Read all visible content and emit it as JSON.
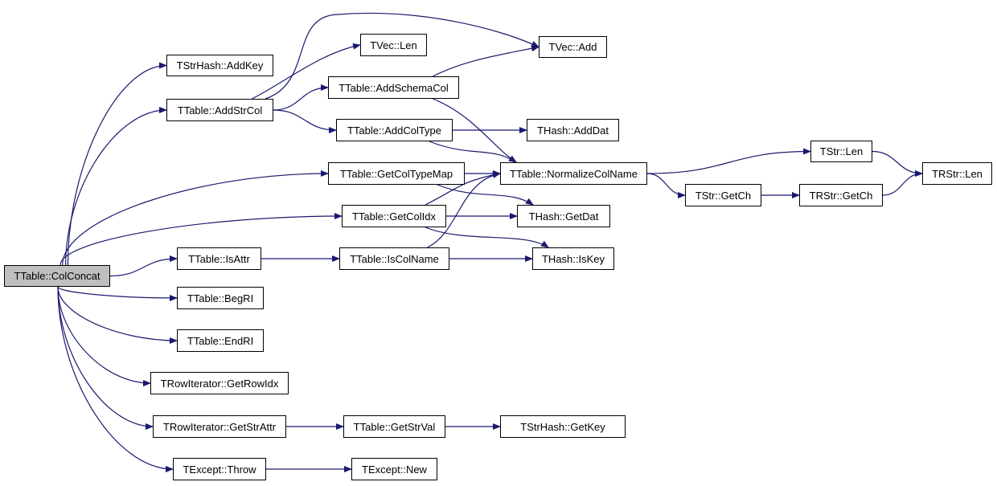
{
  "colors": {
    "edge": "#191970",
    "root_fill": "#bfbfbf",
    "node_fill": "#ffffff",
    "border": "#000000"
  },
  "nodes": [
    {
      "id": "colconcat",
      "label": "TTable::ColConcat",
      "root": true
    },
    {
      "id": "addkey",
      "label": "TStrHash::AddKey"
    },
    {
      "id": "addstrcol",
      "label": "TTable::AddStrCol"
    },
    {
      "id": "veclen",
      "label": "TVec::Len"
    },
    {
      "id": "vecadd",
      "label": "TVec::Add"
    },
    {
      "id": "addschemacol",
      "label": "TTable::AddSchemaCol"
    },
    {
      "id": "addcoltype",
      "label": "TTable::AddColType"
    },
    {
      "id": "adddat",
      "label": "THash::AddDat"
    },
    {
      "id": "getcoltypemap",
      "label": "TTable::GetColTypeMap"
    },
    {
      "id": "normalize",
      "label": "TTable::NormalizeColName"
    },
    {
      "id": "getcolidx",
      "label": "TTable::GetColIdx"
    },
    {
      "id": "getdat",
      "label": "THash::GetDat"
    },
    {
      "id": "isattr",
      "label": "TTable::IsAttr"
    },
    {
      "id": "iscolname",
      "label": "TTable::IsColName"
    },
    {
      "id": "iskey",
      "label": "THash::IsKey"
    },
    {
      "id": "strlen",
      "label": "TStr::Len"
    },
    {
      "id": "strgetch",
      "label": "TStr::GetCh"
    },
    {
      "id": "rstrgetch",
      "label": "TRStr::GetCh"
    },
    {
      "id": "rstrlen",
      "label": "TRStr::Len"
    },
    {
      "id": "begri",
      "label": "TTable::BegRI"
    },
    {
      "id": "endri",
      "label": "TTable::EndRI"
    },
    {
      "id": "getrowidx",
      "label": "TRowIterator::GetRowIdx"
    },
    {
      "id": "getstrattr",
      "label": "TRowIterator::GetStrAttr"
    },
    {
      "id": "getstrval",
      "label": "TTable::GetStrVal"
    },
    {
      "id": "getkey",
      "label": "TStrHash::GetKey"
    },
    {
      "id": "throw",
      "label": "TExcept::Throw"
    },
    {
      "id": "new",
      "label": "TExcept::New"
    }
  ],
  "edges": [
    [
      "colconcat",
      "addkey"
    ],
    [
      "colconcat",
      "addstrcol"
    ],
    [
      "colconcat",
      "getcoltypemap"
    ],
    [
      "colconcat",
      "getcolidx"
    ],
    [
      "colconcat",
      "isattr"
    ],
    [
      "colconcat",
      "begri"
    ],
    [
      "colconcat",
      "endri"
    ],
    [
      "colconcat",
      "getrowidx"
    ],
    [
      "colconcat",
      "getstrattr"
    ],
    [
      "colconcat",
      "throw"
    ],
    [
      "addstrcol",
      "vecadd"
    ],
    [
      "addstrcol",
      "veclen"
    ],
    [
      "addstrcol",
      "addschemacol"
    ],
    [
      "addstrcol",
      "addcoltype"
    ],
    [
      "addschemacol",
      "vecadd"
    ],
    [
      "addschemacol",
      "normalize"
    ],
    [
      "addcoltype",
      "adddat"
    ],
    [
      "addcoltype",
      "normalize"
    ],
    [
      "getcoltypemap",
      "normalize"
    ],
    [
      "getcoltypemap",
      "getdat"
    ],
    [
      "getcolidx",
      "normalize"
    ],
    [
      "getcolidx",
      "getdat"
    ],
    [
      "getcolidx",
      "iskey"
    ],
    [
      "isattr",
      "iscolname"
    ],
    [
      "iscolname",
      "normalize"
    ],
    [
      "iscolname",
      "iskey"
    ],
    [
      "normalize",
      "strlen"
    ],
    [
      "normalize",
      "strgetch"
    ],
    [
      "strlen",
      "rstrlen"
    ],
    [
      "strgetch",
      "rstrgetch"
    ],
    [
      "rstrgetch",
      "rstrlen"
    ],
    [
      "getstrattr",
      "getstrval"
    ],
    [
      "getstrval",
      "getkey"
    ],
    [
      "throw",
      "new"
    ]
  ]
}
